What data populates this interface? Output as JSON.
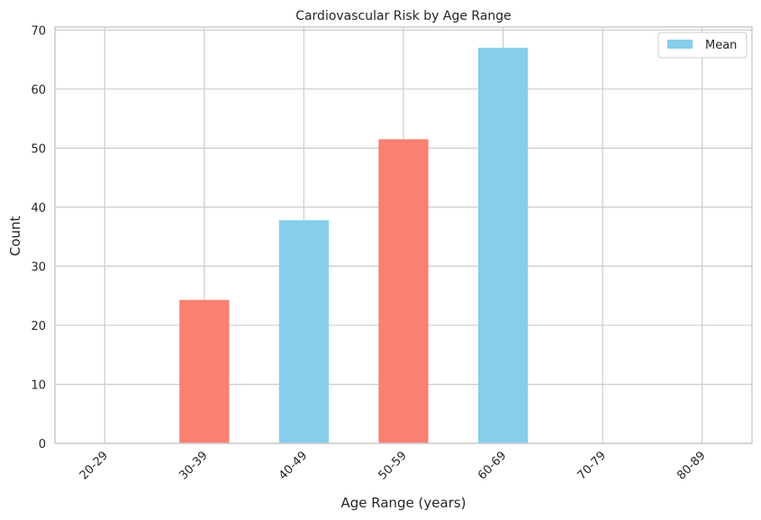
{
  "chart_data": {
    "type": "bar",
    "title": "Cardiovascular Risk by Age Range",
    "xlabel": "Age Range (years)",
    "ylabel": "Count",
    "categories": [
      "20-29",
      "30-39",
      "40-49",
      "50-59",
      "60-69",
      "70-79",
      "80-89"
    ],
    "values": [
      0,
      24.3,
      37.8,
      51.5,
      67.0,
      0,
      0
    ],
    "bar_colors": [
      "#87ceeb",
      "#fa8072",
      "#87ceeb",
      "#fa8072",
      "#87ceeb",
      "#fa8072",
      "#87ceeb"
    ],
    "ylim": [
      0,
      70.5
    ],
    "yticks": [
      0,
      10,
      20,
      30,
      40,
      50,
      60,
      70
    ],
    "grid": true,
    "legend": {
      "position": "top-right",
      "entries": [
        {
          "label": "Mean",
          "color": "#87ceeb"
        }
      ]
    }
  }
}
